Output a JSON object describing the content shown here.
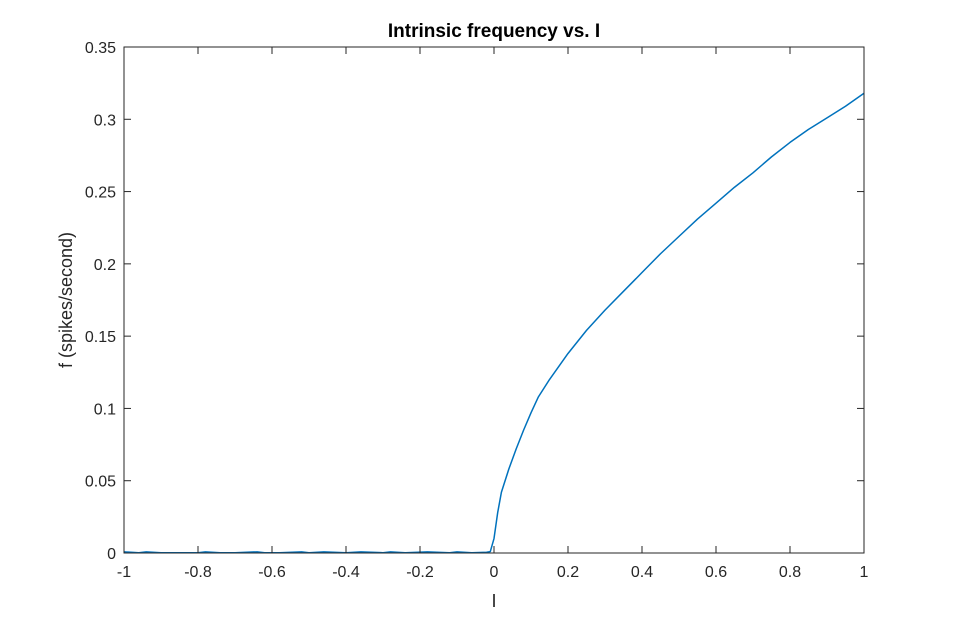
{
  "chart_data": {
    "type": "line",
    "title": "Intrinsic frequency vs. I",
    "xlabel": "I",
    "ylabel": "f (spikes/second)",
    "xlim": [
      -1,
      1
    ],
    "ylim": [
      0,
      0.35
    ],
    "xticks": [
      -1,
      -0.8,
      -0.6,
      -0.4,
      -0.2,
      0,
      0.2,
      0.4,
      0.6,
      0.8,
      1
    ],
    "xtick_labels": [
      "-1",
      "-0.8",
      "-0.6",
      "-0.4",
      "-0.2",
      "0",
      "0.2",
      "0.4",
      "0.6",
      "0.8",
      "1"
    ],
    "yticks": [
      0,
      0.05,
      0.1,
      0.15,
      0.2,
      0.25,
      0.3,
      0.35
    ],
    "ytick_labels": [
      "0",
      "0.05",
      "0.1",
      "0.15",
      "0.2",
      "0.25",
      "0.3",
      "0.35"
    ],
    "grid": false,
    "line_color": "#0072BD",
    "series": [
      {
        "x": [
          -1,
          -0.96,
          -0.94,
          -0.9,
          -0.8,
          -0.78,
          -0.74,
          -0.7,
          -0.64,
          -0.62,
          -0.58,
          -0.52,
          -0.5,
          -0.46,
          -0.4,
          -0.36,
          -0.3,
          -0.28,
          -0.24,
          -0.18,
          -0.12,
          -0.1,
          -0.06,
          -0.02,
          -0.01,
          0,
          0.01,
          0.02,
          0.04,
          0.06,
          0.08,
          0.1,
          0.12,
          0.15,
          0.2,
          0.25,
          0.3,
          0.35,
          0.4,
          0.45,
          0.5,
          0.55,
          0.6,
          0.65,
          0.7,
          0.75,
          0.8,
          0.85,
          0.9,
          0.95,
          1
        ],
        "y": [
          0.0008,
          0.0002,
          0.0008,
          0.0002,
          0.0002,
          0.0008,
          0.0002,
          0.0002,
          0.0008,
          0.0002,
          0.0002,
          0.0008,
          0.0002,
          0.0008,
          0.0002,
          0.0008,
          0.0002,
          0.0008,
          0.0002,
          0.0008,
          0.0002,
          0.0008,
          0.0002,
          0.0005,
          0.001,
          0.01,
          0.028,
          0.042,
          0.058,
          0.072,
          0.085,
          0.097,
          0.108,
          0.12,
          0.138,
          0.154,
          0.168,
          0.181,
          0.194,
          0.207,
          0.219,
          0.231,
          0.242,
          0.253,
          0.263,
          0.274,
          0.284,
          0.293,
          0.301,
          0.309,
          0.318
        ]
      }
    ]
  }
}
